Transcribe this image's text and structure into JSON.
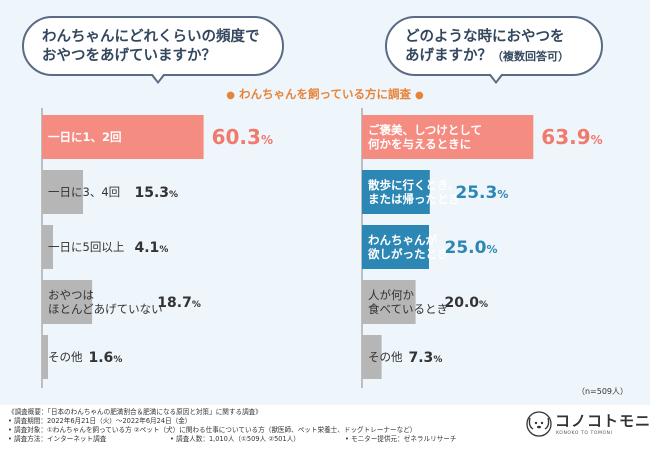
{
  "questions": {
    "left": [
      "わんちゃんにどれくらいの頻度で",
      "おやつをあげていますか？"
    ],
    "right": [
      "どのような時におやつを",
      "あげますか？"
    ],
    "right_note": "（複数回答可）"
  },
  "survey_heading": "わんちゃんを飼っている方に調査",
  "survey_heading_dot": "●",
  "colors": {
    "highlight": "#f58c82",
    "highlight_value": "#f07a6c",
    "gray": "#b6b6b6",
    "blue": "#2c87b5",
    "blue_text": "#2c87b5",
    "dark_text": "#333333",
    "bubble_border": "#5b6b85"
  },
  "chart_data": [
    {
      "type": "bar",
      "orientation": "horizontal",
      "title": "わんちゃんにどれくらいの頻度でおやつをあげていますか？",
      "categories": [
        [
          "一日に1、2回"
        ],
        [
          "一日に3、4回"
        ],
        [
          "一日に5回以上"
        ],
        [
          "おやつは",
          "ほとんどあげていない"
        ],
        [
          "その他"
        ]
      ],
      "values": [
        60.3,
        15.3,
        4.1,
        18.7,
        1.6
      ],
      "styles": [
        "highlight",
        "gray",
        "gray",
        "gray",
        "gray"
      ],
      "unit": "%"
    },
    {
      "type": "bar",
      "orientation": "horizontal",
      "title": "どのような時におやつをあげますか？（複数回答可）",
      "categories": [
        [
          "ご褒美、しつけとして",
          "何かを与えるときに"
        ],
        [
          "散歩に行くとき、",
          "または帰ったとき"
        ],
        [
          "わんちゃんが",
          "欲しがったとき"
        ],
        [
          "人が何か",
          "食べているとき"
        ],
        [
          "その他"
        ]
      ],
      "values": [
        63.9,
        25.3,
        25.0,
        20.0,
        7.3
      ],
      "styles": [
        "highlight",
        "blue",
        "blue",
        "gray",
        "gray"
      ],
      "unit": "%"
    }
  ],
  "sample_size": "（n=509人）",
  "footnotes": {
    "title": "《調査概要：「日本のわんちゃんの肥満割合＆肥満になる原因と対策」に関する調査》",
    "period": "• 調査期間：2022年6月21日（火）～2022年6月24日（金）",
    "target": "• 調査対象：①わんちゃんを飼っている方 ②ペット（犬）に関わる仕事についている方（獣医師、ペット栄養士、ドッグトレーナーなど）",
    "method": "• 調査方法：インターネット調査",
    "respondents": "• 調査人数：1,010人（①509人 ②501人）",
    "provider": "• モニター提供元：ゼネラルリサーチ"
  },
  "logo": {
    "name": "コノコトモニ",
    "sub": "KONOKO TO TOMONI"
  }
}
